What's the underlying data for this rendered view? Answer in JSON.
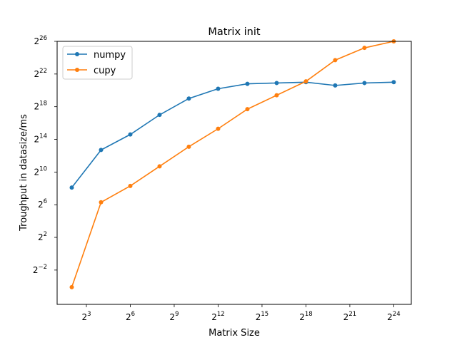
{
  "chart_data": {
    "type": "line",
    "title": "Matrix init",
    "xlabel": "Matrix Size",
    "ylabel": "Troughput in datasize/ms",
    "x_scale": "log2",
    "y_scale": "log2",
    "xlim_exp": [
      1,
      25.2
    ],
    "ylim_exp": [
      -6.2,
      26
    ],
    "x_ticks": [
      {
        "exp": 3,
        "base": "2",
        "sup": "3"
      },
      {
        "exp": 6,
        "base": "2",
        "sup": "6"
      },
      {
        "exp": 9,
        "base": "2",
        "sup": "9"
      },
      {
        "exp": 12,
        "base": "2",
        "sup": "12"
      },
      {
        "exp": 15,
        "base": "2",
        "sup": "15"
      },
      {
        "exp": 18,
        "base": "2",
        "sup": "18"
      },
      {
        "exp": 21,
        "base": "2",
        "sup": "21"
      },
      {
        "exp": 24,
        "base": "2",
        "sup": "24"
      }
    ],
    "y_ticks": [
      {
        "exp": -2,
        "base": "2",
        "sup": "−2"
      },
      {
        "exp": 2,
        "base": "2",
        "sup": "2"
      },
      {
        "exp": 6,
        "base": "2",
        "sup": "6"
      },
      {
        "exp": 10,
        "base": "2",
        "sup": "10"
      },
      {
        "exp": 14,
        "base": "2",
        "sup": "14"
      },
      {
        "exp": 18,
        "base": "2",
        "sup": "18"
      },
      {
        "exp": 22,
        "base": "2",
        "sup": "22"
      },
      {
        "exp": 26,
        "base": "2",
        "sup": "26"
      }
    ],
    "x_exp": [
      2,
      4,
      6,
      8,
      10,
      12,
      14,
      16,
      18,
      20,
      22,
      24
    ],
    "series": [
      {
        "name": "numpy",
        "color": "#1f77b4",
        "y_exp": [
          8.1,
          12.7,
          14.6,
          17.0,
          19.0,
          20.2,
          20.8,
          20.9,
          21.0,
          20.6,
          20.9,
          21.0
        ]
      },
      {
        "name": "cupy",
        "color": "#ff7f0e",
        "y_exp": [
          -4.1,
          6.3,
          8.3,
          10.7,
          13.1,
          15.3,
          17.7,
          19.4,
          21.1,
          23.7,
          25.2,
          26.0
        ]
      }
    ],
    "legend_position": "top-left",
    "grid": false
  }
}
